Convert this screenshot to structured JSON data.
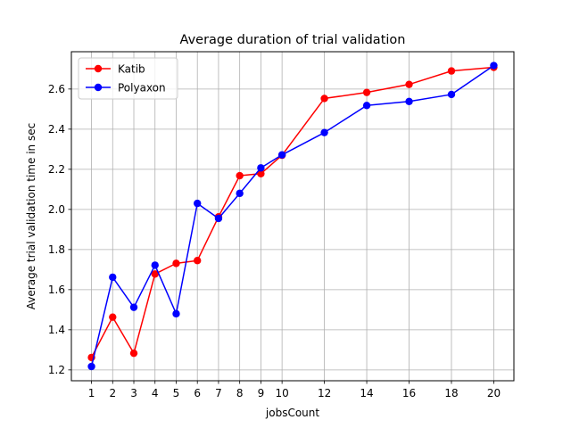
{
  "chart_data": {
    "type": "line",
    "title": "Average duration of trial validation",
    "xlabel": "jobsCount",
    "ylabel": "Average trial validation time in sec",
    "x": [
      1,
      2,
      3,
      4,
      5,
      6,
      7,
      8,
      9,
      10,
      12,
      14,
      16,
      18,
      20
    ],
    "xticks": [
      1,
      2,
      3,
      4,
      5,
      6,
      7,
      8,
      9,
      10,
      12,
      14,
      16,
      18,
      20
    ],
    "xtick_labels": [
      "1",
      "2",
      "3",
      "4",
      "5",
      "6",
      "7",
      "8",
      "9",
      "10",
      "12",
      "14",
      "16",
      "18",
      "20"
    ],
    "yticks": [
      1.2,
      1.4,
      1.6,
      1.8,
      2.0,
      2.2,
      2.4,
      2.6
    ],
    "ytick_labels": [
      "1.2",
      "1.4",
      "1.6",
      "1.8",
      "2.0",
      "2.2",
      "2.4",
      "2.6"
    ],
    "xlim": [
      0.05,
      20.95
    ],
    "ylim": [
      1.146,
      2.786
    ],
    "grid": true,
    "legend_position": "top-left",
    "series": [
      {
        "name": "Katib",
        "color": "#ff0000",
        "marker": "circle",
        "values": [
          1.262,
          1.463,
          1.283,
          1.678,
          1.731,
          1.745,
          1.963,
          2.168,
          2.178,
          2.27,
          2.553,
          2.583,
          2.623,
          2.69,
          2.708
        ]
      },
      {
        "name": "Polyaxon",
        "color": "#0000ff",
        "marker": "circle",
        "values": [
          1.217,
          1.662,
          1.512,
          1.722,
          1.48,
          2.03,
          1.955,
          2.08,
          2.207,
          2.272,
          2.383,
          2.518,
          2.538,
          2.573,
          2.717
        ]
      }
    ]
  }
}
